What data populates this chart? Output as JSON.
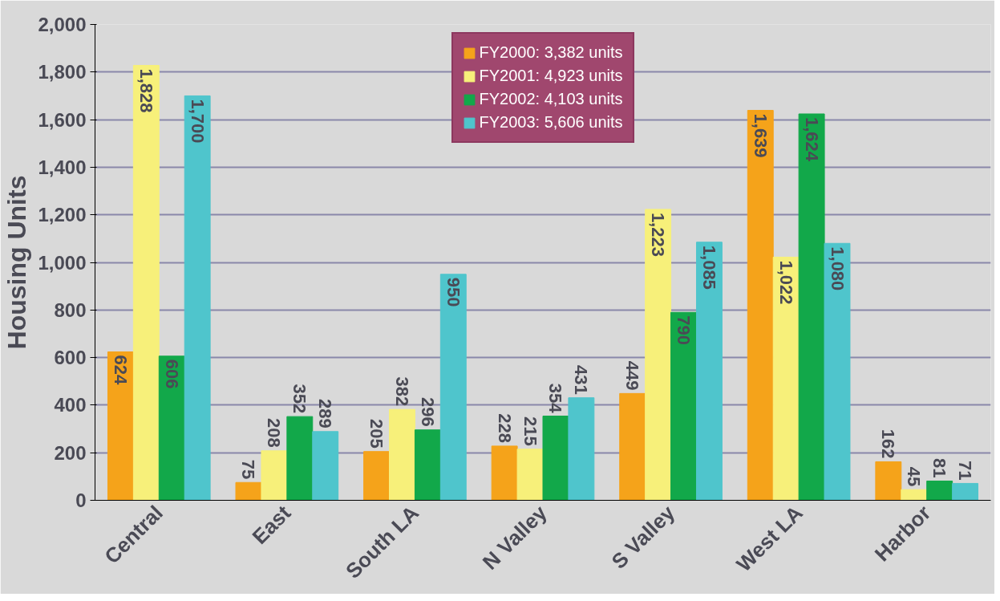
{
  "chart_data": {
    "type": "bar",
    "ylabel": "Housing Units",
    "categories": [
      "Central",
      "East",
      "South LA",
      "N Valley",
      "S Valley",
      "West LA",
      "Harbor"
    ],
    "series": [
      {
        "name": "FY2000: 3,382 units",
        "color": "#f5a31a",
        "values": [
          624,
          75,
          205,
          228,
          449,
          1639,
          162
        ],
        "value_labels": [
          "624",
          "75",
          "205",
          "228",
          "449",
          "1,639",
          "162"
        ]
      },
      {
        "name": "FY2001: 4,923 units",
        "color": "#f7f07a",
        "values": [
          1828,
          208,
          382,
          215,
          1223,
          1022,
          45
        ],
        "value_labels": [
          "1,828",
          "208",
          "382",
          "215",
          "1,223",
          "1,022",
          "45"
        ]
      },
      {
        "name": "FY2002: 4,103 units",
        "color": "#12a84a",
        "values": [
          606,
          352,
          296,
          354,
          790,
          1624,
          81
        ],
        "value_labels": [
          "606",
          "352",
          "296",
          "354",
          "790",
          "1,624",
          "81"
        ]
      },
      {
        "name": "FY2003: 5,606 units",
        "color": "#4fc5cc",
        "values": [
          1700,
          289,
          950,
          431,
          1085,
          1080,
          71
        ],
        "value_labels": [
          "1,700",
          "289",
          "950",
          "431",
          "1,085",
          "1,080",
          "71"
        ]
      }
    ],
    "ylim": [
      0,
      2000
    ],
    "yticks": [
      0,
      {
        "value": 200,
        "label": "200"
      },
      {
        "value": 400,
        "label": "400"
      },
      {
        "value": 600,
        "label": "600"
      },
      {
        "value": 800,
        "label": "800"
      },
      {
        "value": 1000,
        "label": "1,000"
      },
      {
        "value": 1200,
        "label": "1,200"
      },
      {
        "value": 1400,
        "label": "1,400"
      },
      {
        "value": 1600,
        "label": "1,600"
      },
      {
        "value": 1800,
        "label": "1,800"
      },
      {
        "value": 2000,
        "label": "2,000"
      }
    ],
    "grid": "y",
    "legend": "top"
  }
}
